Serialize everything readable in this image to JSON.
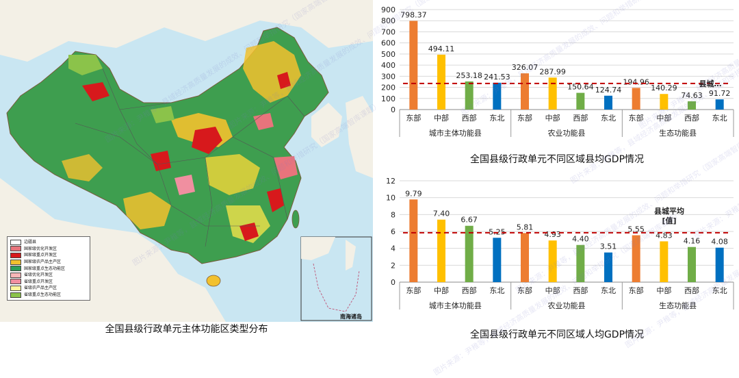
{
  "colors": {
    "east": "#ED7D31",
    "central": "#FFC000",
    "west": "#70AD47",
    "northeast": "#0070C0",
    "avg_line": "#C00000",
    "grid": "#D9D9D9"
  },
  "map": {
    "caption": "全国县级行政单元主体功能区类型分布",
    "south_sea_label": "南海诸岛",
    "legend": [
      {
        "label": "边疆县",
        "color": "#FFFFFF"
      },
      {
        "label": "国家级优化开发区",
        "color": "#E8747C"
      },
      {
        "label": "国家级重点开发区",
        "color": "#D7191C"
      },
      {
        "label": "国家级农产品主产区",
        "color": "#F2C12E"
      },
      {
        "label": "国家级重点生态功能区",
        "color": "#2E9E5A"
      },
      {
        "label": "省级优化开发区",
        "color": "#F7B6B8"
      },
      {
        "label": "省级重点开发区",
        "color": "#F08FA0"
      },
      {
        "label": "省级农产品主产区",
        "color": "#FFF59D"
      },
      {
        "label": "省级重点生态功能区",
        "color": "#8BC34A"
      }
    ]
  },
  "watermark": "图片来源：尹稚等，县域经济高质量发展的成效、问题和举措研究（国家高端智库课题）",
  "chart_data": [
    {
      "type": "bar",
      "title": "全国县级行政单元不同区域县均GDP情况",
      "ylim": [
        0,
        900
      ],
      "yticks": [
        0,
        100,
        200,
        300,
        400,
        500,
        600,
        700,
        800,
        900
      ],
      "grid": true,
      "groups": [
        {
          "label": "城市主体功能县",
          "categories": [
            "东部",
            "中部",
            "西部",
            "东北"
          ],
          "values": [
            798.37,
            494.11,
            253.18,
            241.53
          ]
        },
        {
          "label": "农业功能县",
          "categories": [
            "东部",
            "中部",
            "西部",
            "东北"
          ],
          "values": [
            326.07,
            287.99,
            150.64,
            124.74
          ]
        },
        {
          "label": "生态功能县",
          "categories": [
            "东部",
            "中部",
            "西部",
            "东北"
          ],
          "values": [
            194.96,
            140.29,
            74.63,
            91.72
          ]
        }
      ],
      "value_labels": {
        "城市主体功能县": [
          "798.37",
          "494.11",
          "253.18",
          "241.53"
        ],
        "农业功能县": [
          "326.07",
          "287.99",
          "150.64",
          "124.74"
        ],
        "生态功能县": [
          "194.96",
          "140.29",
          "74.63",
          "91.72"
        ]
      },
      "reference_line": {
        "value": 235,
        "label": "县城…"
      }
    },
    {
      "type": "bar",
      "title": "全国县级行政单元不同区域人均GDP情况",
      "ylim": [
        0,
        12
      ],
      "yticks": [
        0,
        2,
        4,
        6,
        8,
        10,
        12
      ],
      "grid": true,
      "groups": [
        {
          "label": "城市主体功能县",
          "categories": [
            "东部",
            "中部",
            "西部",
            "东北"
          ],
          "values": [
            9.79,
            7.4,
            6.67,
            5.25
          ]
        },
        {
          "label": "农业功能县",
          "categories": [
            "东部",
            "中部",
            "西部",
            "东北"
          ],
          "values": [
            5.81,
            4.93,
            4.4,
            3.51
          ]
        },
        {
          "label": "生态功能县",
          "categories": [
            "东部",
            "中部",
            "西部",
            "东北"
          ],
          "values": [
            5.55,
            4.83,
            4.16,
            4.08
          ]
        }
      ],
      "value_labels": {
        "城市主体功能县": [
          "9.79",
          "7.40",
          "6.67",
          "5.25"
        ],
        "农业功能县": [
          "5.81",
          "4.93",
          "4.40",
          "3.51"
        ],
        "生态功能县": [
          "5.55",
          "4.83",
          "4.16",
          "4.08"
        ]
      },
      "reference_line": {
        "value": 5.85,
        "label": "县城平均\n[值]"
      }
    }
  ]
}
